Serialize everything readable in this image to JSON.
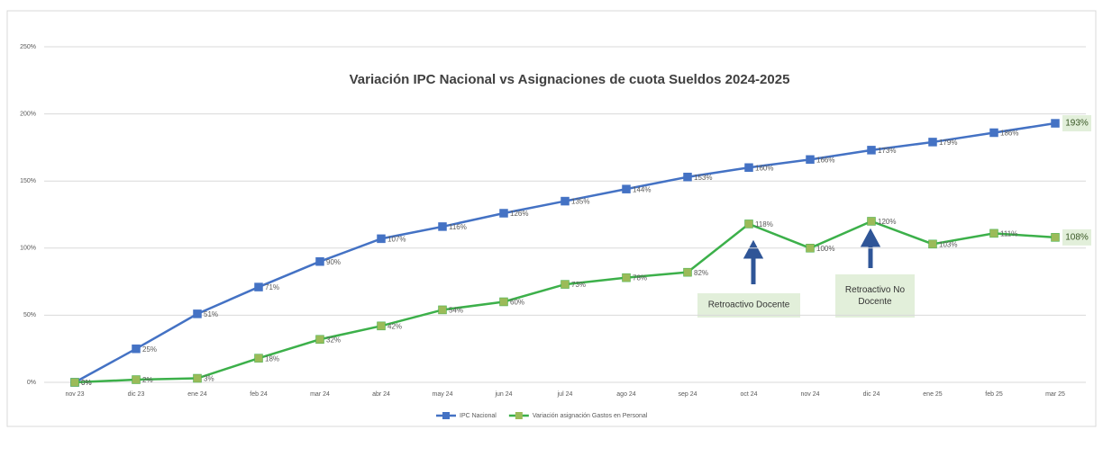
{
  "chart_data": {
    "type": "line",
    "title": "Variación IPC Nacional vs Asignaciones de cuota Sueldos 2024-2025",
    "categories": [
      "nov 23",
      "dic 23",
      "ene 24",
      "feb 24",
      "mar 24",
      "abr 24",
      "may 24",
      "jun 24",
      "jul 24",
      "ago 24",
      "sep 24",
      "oct 24",
      "nov 24",
      "dic 24",
      "ene 25",
      "feb 25",
      "mar 25"
    ],
    "series": [
      {
        "name": "IPC Nacional",
        "color": "#4472c4",
        "marker_color": "#4472c4",
        "values": [
          0,
          25,
          51,
          71,
          90,
          107,
          116,
          126,
          135,
          144,
          153,
          160,
          166,
          173,
          179,
          186,
          193
        ],
        "value_labels": [
          "0%",
          "25%",
          "51%",
          "71%",
          "90%",
          "107%",
          "116%",
          "126%",
          "135%",
          "144%",
          "153%",
          "160%",
          "166%",
          "173%",
          "179%",
          "186%",
          "193%"
        ]
      },
      {
        "name": "Variación asignación Gastos en Personal",
        "color": "#3cb04a",
        "marker_color": "#9bbb59",
        "values": [
          0,
          2,
          3,
          18,
          32,
          42,
          54,
          60,
          73,
          78,
          82,
          118,
          100,
          120,
          103,
          111,
          108
        ],
        "value_labels": [
          "0%",
          "2%",
          "3%",
          "18%",
          "32%",
          "42%",
          "54%",
          "60%",
          "73%",
          "78%",
          "82%",
          "118%",
          "100%",
          "120%",
          "103%",
          "111%",
          "108%"
        ]
      }
    ],
    "ylim": [
      0,
      250
    ],
    "yticks": [
      {
        "value": 0,
        "label": "0%"
      },
      {
        "value": 50,
        "label": "50%"
      },
      {
        "value": 100,
        "label": "100%"
      },
      {
        "value": 150,
        "label": "150%"
      },
      {
        "value": 200,
        "label": "200%"
      },
      {
        "value": 250,
        "label": "250%"
      }
    ],
    "grid": true,
    "legend": "bottom",
    "annotations": [
      "Retroactivo Docente",
      "Retroactivo No Docente"
    ]
  }
}
